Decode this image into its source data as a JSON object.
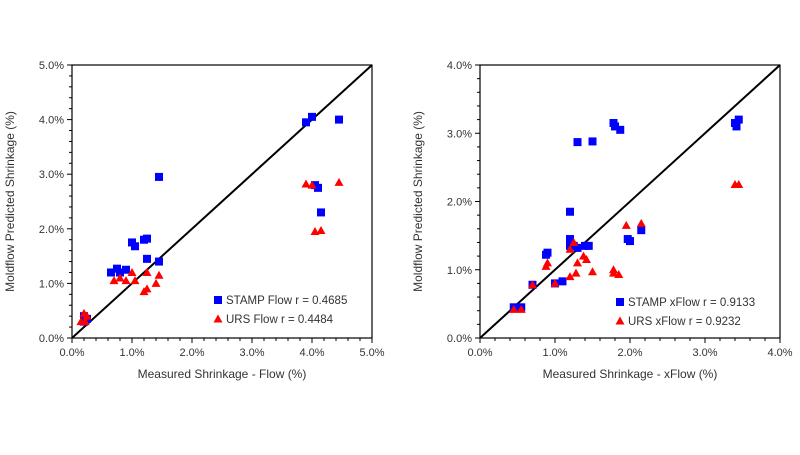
{
  "chart_data": [
    {
      "type": "scatter",
      "xlabel": "Measured Shrinkage - Flow (%)",
      "ylabel": "Moldflow Predicted Shrinkage (%)",
      "xlim": [
        0,
        5
      ],
      "ylim": [
        0,
        5
      ],
      "xticks": [
        "0.0%",
        "1.0%",
        "2.0%",
        "3.0%",
        "4.0%",
        "5.0%"
      ],
      "yticks": [
        "0.0%",
        "1.0%",
        "2.0%",
        "3.0%",
        "4.0%",
        "5.0%"
      ],
      "grid": false,
      "reference_line": "y = x",
      "legend_position": "bottom-right",
      "series": [
        {
          "name": "STAMP Flow r = 0.4685",
          "marker": "square",
          "color": "#0000ff",
          "points": [
            [
              0.2,
              0.4
            ],
            [
              0.25,
              0.35
            ],
            [
              0.2,
              0.3
            ],
            [
              0.65,
              1.2
            ],
            [
              0.75,
              1.27
            ],
            [
              0.8,
              1.2
            ],
            [
              0.9,
              1.25
            ],
            [
              1.0,
              1.75
            ],
            [
              1.05,
              1.68
            ],
            [
              1.2,
              1.8
            ],
            [
              1.25,
              1.82
            ],
            [
              1.25,
              1.45
            ],
            [
              1.45,
              1.4
            ],
            [
              1.45,
              2.95
            ],
            [
              3.9,
              3.95
            ],
            [
              4.0,
              4.05
            ],
            [
              4.45,
              4.0
            ],
            [
              4.05,
              2.8
            ],
            [
              4.1,
              2.75
            ],
            [
              4.15,
              2.3
            ]
          ]
        },
        {
          "name": "URS Flow r = 0.4484",
          "marker": "triangle",
          "color": "#ff0000",
          "points": [
            [
              0.15,
              0.3
            ],
            [
              0.2,
              0.45
            ],
            [
              0.25,
              0.4
            ],
            [
              0.22,
              0.3
            ],
            [
              0.7,
              1.05
            ],
            [
              0.8,
              1.1
            ],
            [
              0.9,
              1.05
            ],
            [
              1.0,
              1.2
            ],
            [
              1.05,
              1.05
            ],
            [
              1.2,
              0.85
            ],
            [
              1.25,
              0.9
            ],
            [
              1.25,
              1.2
            ],
            [
              1.45,
              1.15
            ],
            [
              1.4,
              1.0
            ],
            [
              3.9,
              2.82
            ],
            [
              4.0,
              2.8
            ],
            [
              4.45,
              2.85
            ],
            [
              4.05,
              1.95
            ],
            [
              4.15,
              1.97
            ]
          ]
        }
      ]
    },
    {
      "type": "scatter",
      "xlabel": "Measured Shrinkage - xFlow (%)",
      "ylabel": "Moldflow Predicted Shrinkage (%)",
      "xlim": [
        0,
        4
      ],
      "ylim": [
        0,
        4
      ],
      "xticks": [
        "0.0%",
        "1.0%",
        "2.0%",
        "3.0%",
        "4.0%"
      ],
      "yticks": [
        "0.0%",
        "1.0%",
        "2.0%",
        "3.0%",
        "4.0%"
      ],
      "grid": false,
      "reference_line": "y = x",
      "legend_position": "bottom-right",
      "series": [
        {
          "name": "STAMP xFlow r = 0.9133",
          "marker": "square",
          "color": "#0000ff",
          "points": [
            [
              0.45,
              0.45
            ],
            [
              0.55,
              0.45
            ],
            [
              0.7,
              0.78
            ],
            [
              0.88,
              1.22
            ],
            [
              0.9,
              1.25
            ],
            [
              1.0,
              0.8
            ],
            [
              1.1,
              0.83
            ],
            [
              1.2,
              1.85
            ],
            [
              1.2,
              1.45
            ],
            [
              1.2,
              1.35
            ],
            [
              1.25,
              1.35
            ],
            [
              1.3,
              1.32
            ],
            [
              1.4,
              1.35
            ],
            [
              1.45,
              1.35
            ],
            [
              1.3,
              2.87
            ],
            [
              1.5,
              2.88
            ],
            [
              1.78,
              3.15
            ],
            [
              1.8,
              3.1
            ],
            [
              1.87,
              3.05
            ],
            [
              1.97,
              1.45
            ],
            [
              2.0,
              1.42
            ],
            [
              2.15,
              1.58
            ],
            [
              3.4,
              3.15
            ],
            [
              3.45,
              3.2
            ],
            [
              3.42,
              3.1
            ]
          ]
        },
        {
          "name": "URS xFlow r = 0.9232",
          "marker": "triangle",
          "color": "#ff0000",
          "points": [
            [
              0.45,
              0.42
            ],
            [
              0.55,
              0.42
            ],
            [
              0.7,
              0.78
            ],
            [
              0.88,
              1.05
            ],
            [
              0.9,
              1.1
            ],
            [
              1.0,
              0.8
            ],
            [
              1.2,
              1.3
            ],
            [
              1.25,
              1.4
            ],
            [
              1.2,
              0.9
            ],
            [
              1.28,
              0.95
            ],
            [
              1.3,
              1.1
            ],
            [
              1.38,
              1.2
            ],
            [
              1.42,
              1.15
            ],
            [
              1.5,
              0.97
            ],
            [
              1.78,
              1.0
            ],
            [
              1.78,
              0.95
            ],
            [
              1.85,
              0.93
            ],
            [
              1.95,
              1.65
            ],
            [
              2.15,
              1.68
            ],
            [
              3.4,
              2.25
            ],
            [
              3.45,
              2.25
            ]
          ]
        }
      ]
    }
  ]
}
